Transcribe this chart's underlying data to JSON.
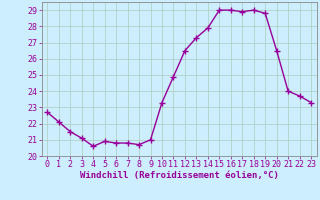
{
  "x": [
    0,
    1,
    2,
    3,
    4,
    5,
    6,
    7,
    8,
    9,
    10,
    11,
    12,
    13,
    14,
    15,
    16,
    17,
    18,
    19,
    20,
    21,
    22,
    23
  ],
  "y": [
    22.7,
    22.1,
    21.5,
    21.1,
    20.6,
    20.9,
    20.8,
    20.8,
    20.7,
    21.0,
    23.3,
    24.9,
    26.5,
    27.3,
    27.9,
    29.0,
    29.0,
    28.9,
    29.0,
    28.8,
    26.5,
    24.0,
    23.7,
    23.3
  ],
  "line_color": "#990099",
  "marker": "+",
  "marker_size": 4,
  "marker_lw": 1.0,
  "line_width": 1.0,
  "bg_color": "#cceeff",
  "grid_color": "#aaccbb",
  "xlabel": "Windchill (Refroidissement éolien,°C)",
  "ylim": [
    20,
    29.5
  ],
  "xlim": [
    -0.5,
    23.5
  ],
  "yticks": [
    20,
    21,
    22,
    23,
    24,
    25,
    26,
    27,
    28,
    29
  ],
  "xticks": [
    0,
    1,
    2,
    3,
    4,
    5,
    6,
    7,
    8,
    9,
    10,
    11,
    12,
    13,
    14,
    15,
    16,
    17,
    18,
    19,
    20,
    21,
    22,
    23
  ],
  "tick_color": "#990099",
  "label_color": "#990099",
  "xlabel_fontsize": 6.5,
  "tick_fontsize": 6.0,
  "spine_color": "#888888"
}
